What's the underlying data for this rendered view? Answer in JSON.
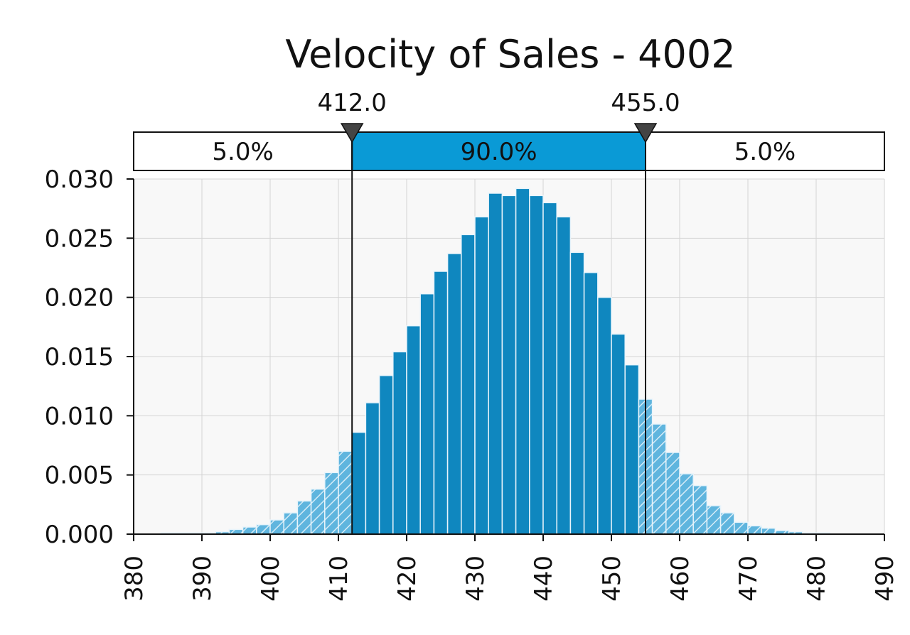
{
  "chart_data": {
    "type": "bar",
    "title": "Velocity of Sales - 4002",
    "xlabel": "",
    "ylabel": "",
    "xlim": [
      380,
      490
    ],
    "ylim": [
      0,
      0.03
    ],
    "x_ticks": [
      "380",
      "390",
      "400",
      "410",
      "420",
      "430",
      "440",
      "450",
      "460",
      "470",
      "480",
      "490"
    ],
    "y_ticks": [
      "0.000",
      "0.005",
      "0.010",
      "0.015",
      "0.020",
      "0.025",
      "0.030"
    ],
    "grid": true,
    "bin_width": 2,
    "bins": [
      {
        "x": 385,
        "y": 0.0001
      },
      {
        "x": 387,
        "y": 0.0001
      },
      {
        "x": 389,
        "y": 0.0001
      },
      {
        "x": 391,
        "y": 0.0001
      },
      {
        "x": 393,
        "y": 0.0002
      },
      {
        "x": 395,
        "y": 0.0004
      },
      {
        "x": 397,
        "y": 0.0006
      },
      {
        "x": 399,
        "y": 0.0008
      },
      {
        "x": 401,
        "y": 0.0012
      },
      {
        "x": 403,
        "y": 0.0018
      },
      {
        "x": 405,
        "y": 0.0028
      },
      {
        "x": 407,
        "y": 0.0038
      },
      {
        "x": 409,
        "y": 0.0052
      },
      {
        "x": 411,
        "y": 0.007
      },
      {
        "x": 413,
        "y": 0.0086
      },
      {
        "x": 415,
        "y": 0.0111
      },
      {
        "x": 417,
        "y": 0.0134
      },
      {
        "x": 419,
        "y": 0.0154
      },
      {
        "x": 421,
        "y": 0.0176
      },
      {
        "x": 423,
        "y": 0.0203
      },
      {
        "x": 425,
        "y": 0.0222
      },
      {
        "x": 427,
        "y": 0.0237
      },
      {
        "x": 429,
        "y": 0.0253
      },
      {
        "x": 431,
        "y": 0.0268
      },
      {
        "x": 433,
        "y": 0.0288
      },
      {
        "x": 435,
        "y": 0.0286
      },
      {
        "x": 437,
        "y": 0.0292
      },
      {
        "x": 439,
        "y": 0.0286
      },
      {
        "x": 441,
        "y": 0.028
      },
      {
        "x": 443,
        "y": 0.0268
      },
      {
        "x": 445,
        "y": 0.0238
      },
      {
        "x": 447,
        "y": 0.0221
      },
      {
        "x": 449,
        "y": 0.02
      },
      {
        "x": 451,
        "y": 0.0169
      },
      {
        "x": 453,
        "y": 0.0143
      },
      {
        "x": 455,
        "y": 0.0114
      },
      {
        "x": 457,
        "y": 0.0093
      },
      {
        "x": 459,
        "y": 0.0069
      },
      {
        "x": 461,
        "y": 0.0051
      },
      {
        "x": 463,
        "y": 0.0041
      },
      {
        "x": 465,
        "y": 0.0024
      },
      {
        "x": 467,
        "y": 0.0018
      },
      {
        "x": 469,
        "y": 0.001
      },
      {
        "x": 471,
        "y": 0.0007
      },
      {
        "x": 473,
        "y": 0.0005
      },
      {
        "x": 475,
        "y": 0.0003
      },
      {
        "x": 477,
        "y": 0.0002
      },
      {
        "x": 479,
        "y": 0.0001
      },
      {
        "x": 481,
        "y": 0.0001
      }
    ],
    "lower_cutoff": 412.0,
    "upper_cutoff": 455.0,
    "lower_label": "412.0",
    "upper_label": "455.0",
    "segments": [
      {
        "label": "5.0%",
        "highlight": false
      },
      {
        "label": "90.0%",
        "highlight": true
      },
      {
        "label": "5.0%",
        "highlight": false
      }
    ],
    "colors": {
      "bar": "#0f87bf",
      "band": "#0a9ad6",
      "hatch": "#a9d6ec"
    }
  }
}
